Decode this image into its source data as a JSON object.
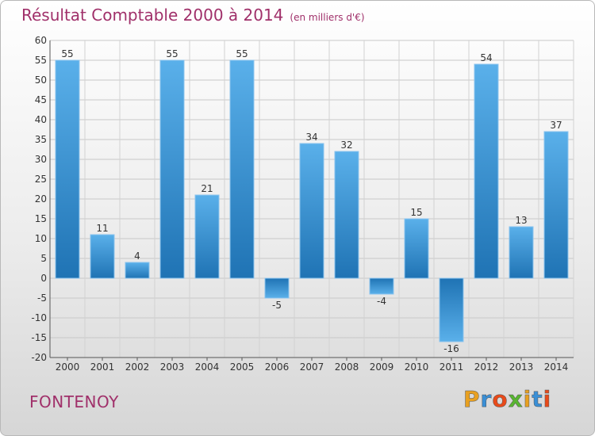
{
  "header": {
    "title": "Résultat Comptable 2000 à 2014",
    "subtitle": "(en milliers d'€)"
  },
  "footer": {
    "city": "FONTENOY",
    "logo_text": "Proxiti"
  },
  "colors": {
    "title": "#a0306a",
    "bar_top": "#5ab0ea",
    "bar_bottom": "#1f73b4",
    "logo_letters": [
      "#e8a020",
      "#3a8fd6",
      "#e84a1a",
      "#58b530",
      "#e8a020",
      "#3a8fd6",
      "#e84a1a"
    ]
  },
  "chart_data": {
    "type": "bar",
    "title": "Résultat Comptable 2000 à 2014",
    "xlabel": "",
    "ylabel": "",
    "categories": [
      "2000",
      "2001",
      "2002",
      "2003",
      "2004",
      "2005",
      "2006",
      "2007",
      "2008",
      "2009",
      "2010",
      "2011",
      "2012",
      "2013",
      "2014"
    ],
    "values": [
      55,
      11,
      4,
      55,
      21,
      55,
      -5,
      34,
      32,
      -4,
      15,
      -16,
      54,
      13,
      37
    ],
    "ylim": [
      -20,
      60
    ],
    "yticks": [
      -20,
      -15,
      -10,
      -5,
      0,
      5,
      10,
      15,
      20,
      25,
      30,
      35,
      40,
      45,
      50,
      55,
      60
    ],
    "grid": true,
    "data_labels": true
  }
}
